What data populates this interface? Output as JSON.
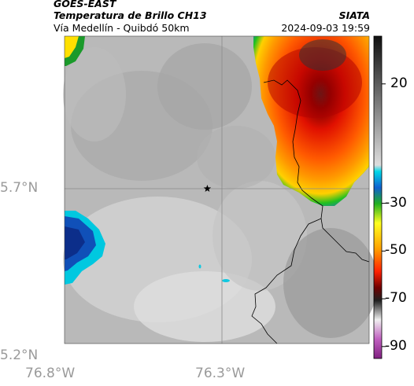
{
  "header": {
    "satellite": "GOES-EAST",
    "product": "Temperatura de Brillo CH13",
    "region": "Vía Medellín - Quibdó 50km",
    "source": "SIATA",
    "timestamp": "2024-09-03 19:59"
  },
  "map": {
    "y_ticks": [
      {
        "value": 5.7,
        "label": "5.7°N"
      },
      {
        "value": 5.2,
        "label": "5.2°N"
      }
    ],
    "x_ticks": [
      {
        "value": -76.8,
        "label": "76.8°W"
      },
      {
        "value": -76.3,
        "label": "76.3°W"
      }
    ],
    "lat_range": [
      5.2,
      6.2
    ],
    "lon_range": [
      -76.8,
      -75.85
    ],
    "marker": {
      "type": "star-icon",
      "lat": 5.7,
      "lon": -76.35
    },
    "colors": {
      "cold_cloud": "#ff2a00",
      "warm_ground": "#bdbdbd",
      "gridline": "#8a8a8a",
      "border_line": "#000000"
    }
  },
  "colorbar": {
    "ticks": [
      {
        "value": 20,
        "label": "20"
      },
      {
        "value": -30,
        "label": "-30"
      },
      {
        "value": -50,
        "label": "-50"
      },
      {
        "value": -70,
        "label": "-70"
      },
      {
        "value": -90,
        "label": "-90"
      }
    ],
    "range": [
      -95,
      40
    ]
  }
}
